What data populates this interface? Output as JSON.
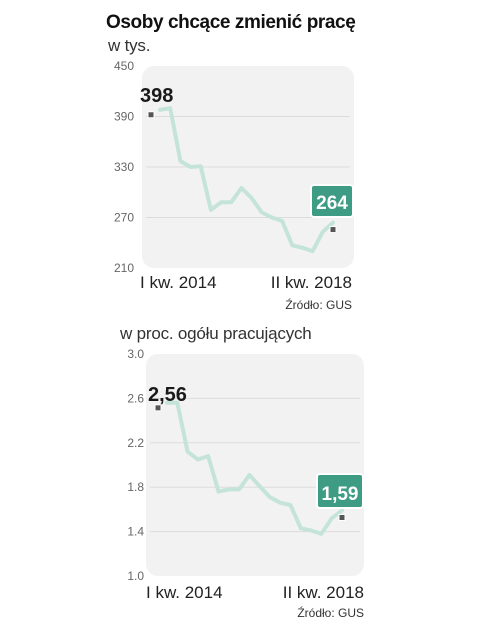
{
  "title": "Osoby chcące zmienić pracę",
  "chart_data": [
    {
      "type": "line",
      "subtitle": "w tys.",
      "x_labels": [
        "I kw. 2014",
        "II kw. 2018"
      ],
      "yticks": [
        "210",
        "270",
        "330",
        "390",
        "450"
      ],
      "ylim": [
        210,
        450
      ],
      "values": [
        398,
        400,
        337,
        330,
        331,
        279,
        288,
        288,
        305,
        293,
        276,
        270,
        266,
        237,
        234,
        230,
        253,
        264
      ],
      "start_label": "398",
      "end_label": "264",
      "source": "Źródło: GUS",
      "line_color": "#c5e4d9",
      "accent_color": "#3e9b84"
    },
    {
      "type": "line",
      "subtitle": "w proc. ogółu pracujących",
      "x_labels": [
        "I kw. 2014",
        "II kw. 2018"
      ],
      "yticks": [
        "1.0",
        "1.4",
        "1.8",
        "2.2",
        "2.6",
        "3.0"
      ],
      "ylim": [
        1.0,
        3.0
      ],
      "values": [
        2.56,
        2.56,
        2.12,
        2.05,
        2.08,
        1.76,
        1.78,
        1.78,
        1.91,
        1.81,
        1.71,
        1.66,
        1.64,
        1.43,
        1.41,
        1.38,
        1.52,
        1.59
      ],
      "start_label": "2,56",
      "end_label": "1,59",
      "source": "Źródło: GUS",
      "line_color": "#c5e4d9",
      "accent_color": "#3e9b84"
    }
  ]
}
